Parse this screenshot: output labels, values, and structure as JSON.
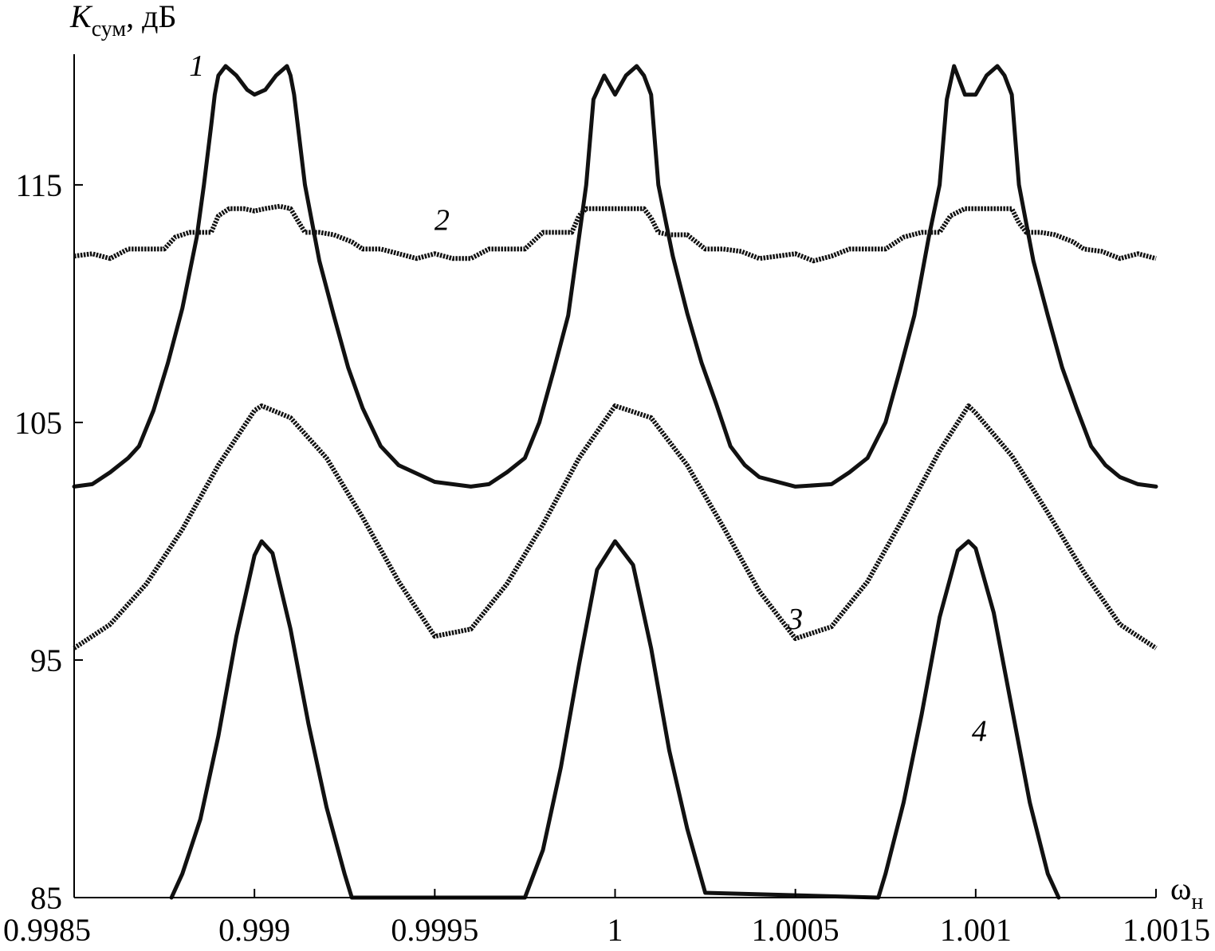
{
  "chart_data": {
    "type": "line",
    "ylabel": {
      "main": "K",
      "sub": "сум",
      "unit": ", дБ"
    },
    "xlabel": {
      "main": "ω",
      "sub": "н"
    },
    "xlim": [
      0.9985,
      1.0015
    ],
    "ylim": [
      85,
      120.5
    ],
    "x_ticks": [
      {
        "value": 0.9985,
        "label": "0.9985"
      },
      {
        "value": 0.999,
        "label": "0.999"
      },
      {
        "value": 0.9995,
        "label": "0.9995"
      },
      {
        "value": 1.0,
        "label": "1"
      },
      {
        "value": 1.0005,
        "label": "1.0005"
      },
      {
        "value": 1.001,
        "label": "1.001"
      },
      {
        "value": 1.0015,
        "label": "1.0015"
      }
    ],
    "y_ticks": [
      {
        "value": 85,
        "label": "85"
      },
      {
        "value": 95,
        "label": "95"
      },
      {
        "value": 105,
        "label": "105"
      },
      {
        "value": 115,
        "label": "115"
      }
    ],
    "grid": false,
    "series": [
      {
        "name": "1",
        "style": "solid",
        "label_at": [
          0.99884,
          119.6
        ],
        "x": [
          0.9985,
          0.99855,
          0.9986,
          0.99865,
          0.99868,
          0.99872,
          0.99876,
          0.9988,
          0.99884,
          0.99886,
          0.99888,
          0.99889,
          0.9989,
          0.99892,
          0.99895,
          0.99898,
          0.999,
          0.99903,
          0.99906,
          0.99909,
          0.9991,
          0.99911,
          0.99914,
          0.99918,
          0.99922,
          0.99926,
          0.9993,
          0.99935,
          0.9994,
          0.9995,
          0.9996,
          0.99965,
          0.9997,
          0.99975,
          0.99979,
          0.99983,
          0.99987,
          0.9999,
          0.99992,
          0.99994,
          0.99997,
          1.0,
          1.00003,
          1.00006,
          1.00008,
          1.0001,
          1.00012,
          1.00016,
          1.0002,
          1.00024,
          1.00028,
          1.00032,
          1.00036,
          1.0004,
          1.0005,
          1.0006,
          1.00065,
          1.0007,
          1.00075,
          1.00079,
          1.00083,
          1.00087,
          1.0009,
          1.00092,
          1.00094,
          1.00097,
          1.001,
          1.00103,
          1.00106,
          1.00108,
          1.0011,
          1.00112,
          1.00116,
          1.0012,
          1.00124,
          1.00128,
          1.00132,
          1.00136,
          1.0014,
          1.00145,
          1.0015
        ],
        "y": [
          102.3,
          102.4,
          102.9,
          103.5,
          104.0,
          105.5,
          107.5,
          109.8,
          112.8,
          115.0,
          117.5,
          118.8,
          119.6,
          120.0,
          119.6,
          119.0,
          118.8,
          119.0,
          119.6,
          120.0,
          119.6,
          118.8,
          115.0,
          111.8,
          109.5,
          107.3,
          105.6,
          104.0,
          103.2,
          102.5,
          102.3,
          102.4,
          102.9,
          103.5,
          105.0,
          107.2,
          109.5,
          112.8,
          115.0,
          118.6,
          119.6,
          118.8,
          119.6,
          120.0,
          119.6,
          118.8,
          115.0,
          112.0,
          109.6,
          107.5,
          105.8,
          104.0,
          103.2,
          102.7,
          102.3,
          102.4,
          102.9,
          103.5,
          105.0,
          107.2,
          109.5,
          112.8,
          115.0,
          118.6,
          120.0,
          118.8,
          118.8,
          119.6,
          120.0,
          119.6,
          118.8,
          115.0,
          111.8,
          109.5,
          107.3,
          105.6,
          104.0,
          103.2,
          102.7,
          102.4,
          102.3
        ]
      },
      {
        "name": "2",
        "style": "dotted",
        "label_at": [
          0.99952,
          113.1
        ],
        "x": [
          0.9985,
          0.99855,
          0.9986,
          0.99865,
          0.9987,
          0.99875,
          0.99878,
          0.99882,
          0.99886,
          0.99888,
          0.9989,
          0.99893,
          0.99897,
          0.999,
          0.99903,
          0.99907,
          0.9991,
          0.99912,
          0.99914,
          0.99918,
          0.99922,
          0.99927,
          0.9993,
          0.99935,
          0.9994,
          0.99945,
          0.9995,
          0.99955,
          0.9996,
          0.99965,
          0.9997,
          0.99975,
          0.9998,
          0.99985,
          0.99988,
          0.9999,
          0.99992,
          0.99995,
          1.0,
          1.00005,
          1.00008,
          1.0001,
          1.00012,
          1.00015,
          1.0002,
          1.00025,
          1.0003,
          1.00035,
          1.0004,
          1.00045,
          1.0005,
          1.00055,
          1.0006,
          1.00065,
          1.0007,
          1.00075,
          1.0008,
          1.00085,
          1.0009,
          1.00093,
          1.00097,
          1.001,
          1.00103,
          1.00107,
          1.0011,
          1.00112,
          1.00114,
          1.00118,
          1.00122,
          1.00127,
          1.0013,
          1.00135,
          1.0014,
          1.00145,
          1.0015
        ],
        "y": [
          112.0,
          112.1,
          111.9,
          112.3,
          112.3,
          112.3,
          112.8,
          113.0,
          113.0,
          113.0,
          113.7,
          114.0,
          114.0,
          113.9,
          114.0,
          114.1,
          114.0,
          113.5,
          113.0,
          113.0,
          112.9,
          112.6,
          112.3,
          112.3,
          112.1,
          111.9,
          112.1,
          111.9,
          111.9,
          112.3,
          112.3,
          112.3,
          113.0,
          113.0,
          113.0,
          113.7,
          114.0,
          114.0,
          114.0,
          114.0,
          114.0,
          113.6,
          113.0,
          112.9,
          112.9,
          112.3,
          112.3,
          112.2,
          111.9,
          112.0,
          112.1,
          111.8,
          112.0,
          112.3,
          112.3,
          112.3,
          112.8,
          113.0,
          113.0,
          113.7,
          114.0,
          114.0,
          114.0,
          114.0,
          114.0,
          113.4,
          113.0,
          113.0,
          112.9,
          112.6,
          112.3,
          112.2,
          111.9,
          112.1,
          111.9
        ]
      },
      {
        "name": "3",
        "style": "dotted",
        "label_at": [
          1.0005,
          96.3
        ],
        "x": [
          0.9985,
          0.9986,
          0.9987,
          0.9988,
          0.9989,
          0.999,
          0.99902,
          0.9991,
          0.9992,
          0.9993,
          0.9994,
          0.9995,
          0.9996,
          0.9997,
          0.9998,
          0.9999,
          1.0,
          1.0001,
          1.0002,
          1.0003,
          1.0004,
          1.0005,
          1.0006,
          1.0007,
          1.0008,
          1.0009,
          1.00098,
          1.001,
          1.0011,
          1.0012,
          1.0013,
          1.0014,
          1.0015
        ],
        "y": [
          95.5,
          96.5,
          98.2,
          100.5,
          103.2,
          105.5,
          105.7,
          105.2,
          103.5,
          101.0,
          98.3,
          96.0,
          96.3,
          98.2,
          100.7,
          103.5,
          105.7,
          105.2,
          103.2,
          100.6,
          97.9,
          95.9,
          96.4,
          98.3,
          101.0,
          103.8,
          105.7,
          105.4,
          103.6,
          101.2,
          98.7,
          96.5,
          95.5
        ]
      },
      {
        "name": "4",
        "style": "solid",
        "label_at": [
          1.00101,
          91.6
        ],
        "x": [
          0.99877,
          0.9988,
          0.99885,
          0.9989,
          0.99895,
          0.999,
          0.99902,
          0.99905,
          0.9991,
          0.99915,
          0.9992,
          0.99925,
          0.99927,
          0.99975,
          0.9998,
          0.99985,
          0.9999,
          0.99995,
          1.0,
          1.00005,
          1.0001,
          1.00015,
          1.0002,
          1.00025,
          1.00073,
          1.00075,
          1.0008,
          1.00085,
          1.0009,
          1.00095,
          1.00098,
          1.001,
          1.00105,
          1.0011,
          1.00115,
          1.0012,
          1.00123
        ],
        "y": [
          85.0,
          86.0,
          88.3,
          91.8,
          96.0,
          99.4,
          100.0,
          99.5,
          96.3,
          92.3,
          88.8,
          86.0,
          85.0,
          85.0,
          87.0,
          90.5,
          94.8,
          98.8,
          100.0,
          99.0,
          95.5,
          91.2,
          87.9,
          85.2,
          85.0,
          86.0,
          89.0,
          92.7,
          96.8,
          99.6,
          100.0,
          99.7,
          97.0,
          93.0,
          89.0,
          86.0,
          85.0
        ]
      }
    ]
  }
}
